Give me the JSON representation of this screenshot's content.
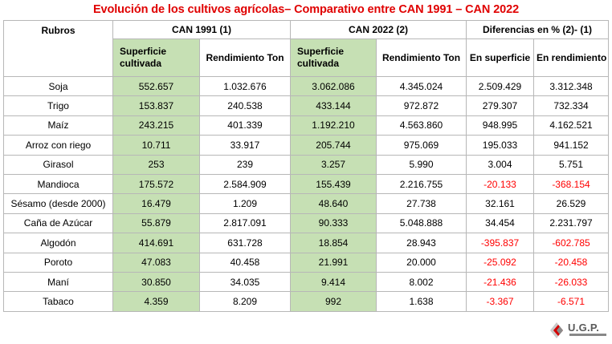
{
  "title": "Evolución de los cultivos agrícolas– Comparativo entre CAN 1991 – CAN 2022",
  "headers": {
    "rubros": "Rubros",
    "can1991": "CAN 1991 (1)",
    "can2022": "CAN 2022 (2)",
    "diferencias": "Diferencias en % (2)- (1)",
    "superficie_cultivada": "Superficie cultivada",
    "rendimiento_ton": "Rendimiento Ton",
    "en_superficie": "En superficie",
    "en_rendimiento": "En rendimiento"
  },
  "rows": [
    {
      "rubro": "Soja",
      "s1991": "552.657",
      "r1991": "1.032.676",
      "s2022": "3.062.086",
      "r2022": "4.345.024",
      "dsup": "2.509.429",
      "dren": "3.312.348",
      "neg_sup": false,
      "neg_ren": false
    },
    {
      "rubro": "Trigo",
      "s1991": "153.837",
      "r1991": "240.538",
      "s2022": "433.144",
      "r2022": "972.872",
      "dsup": "279.307",
      "dren": "732.334",
      "neg_sup": false,
      "neg_ren": false
    },
    {
      "rubro": "Maíz",
      "s1991": "243.215",
      "r1991": "401.339",
      "s2022": "1.192.210",
      "r2022": "4.563.860",
      "dsup": "948.995",
      "dren": "4.162.521",
      "neg_sup": false,
      "neg_ren": false
    },
    {
      "rubro": "Arroz con riego",
      "s1991": "10.711",
      "r1991": "33.917",
      "s2022": "205.744",
      "r2022": "975.069",
      "dsup": "195.033",
      "dren": "941.152",
      "neg_sup": false,
      "neg_ren": false
    },
    {
      "rubro": "Girasol",
      "s1991": "253",
      "r1991": "239",
      "s2022": "3.257",
      "r2022": "5.990",
      "dsup": "3.004",
      "dren": "5.751",
      "neg_sup": false,
      "neg_ren": false
    },
    {
      "rubro": "Mandioca",
      "s1991": "175.572",
      "r1991": "2.584.909",
      "s2022": "155.439",
      "r2022": "2.216.755",
      "dsup": "-20.133",
      "dren": "-368.154",
      "neg_sup": true,
      "neg_ren": true
    },
    {
      "rubro": "Sésamo (desde 2000)",
      "s1991": "16.479",
      "r1991": "1.209",
      "s2022": "48.640",
      "r2022": "27.738",
      "dsup": "32.161",
      "dren": "26.529",
      "neg_sup": false,
      "neg_ren": false
    },
    {
      "rubro": "Caña de Azúcar",
      "s1991": "55.879",
      "r1991": "2.817.091",
      "s2022": "90.333",
      "r2022": "5.048.888",
      "dsup": "34.454",
      "dren": "2.231.797",
      "neg_sup": false,
      "neg_ren": false
    },
    {
      "rubro": "Algodón",
      "s1991": "414.691",
      "r1991": "631.728",
      "s2022": "18.854",
      "r2022": "28.943",
      "dsup": "-395.837",
      "dren": "-602.785",
      "neg_sup": true,
      "neg_ren": true
    },
    {
      "rubro": "Poroto",
      "s1991": "47.083",
      "r1991": "40.458",
      "s2022": "21.991",
      "r2022": "20.000",
      "dsup": "-25.092",
      "dren": "-20.458",
      "neg_sup": true,
      "neg_ren": true
    },
    {
      "rubro": "Maní",
      "s1991": "30.850",
      "r1991": "34.035",
      "s2022": "9.414",
      "r2022": "8.002",
      "dsup": "-21.436",
      "dren": "-26.033",
      "neg_sup": true,
      "neg_ren": true
    },
    {
      "rubro": "Tabaco",
      "s1991": "4.359",
      "r1991": "8.209",
      "s2022": "992",
      "r2022": "1.638",
      "dsup": "-3.367",
      "dren": "-6.571",
      "neg_sup": true,
      "neg_ren": true
    }
  ],
  "logo": {
    "text": "U.G.P.",
    "icon": "ugp-logo-icon",
    "accent": "#d40000"
  },
  "colors": {
    "title": "#e00000",
    "green": "#c6e0b4",
    "negative": "#ff0000"
  }
}
